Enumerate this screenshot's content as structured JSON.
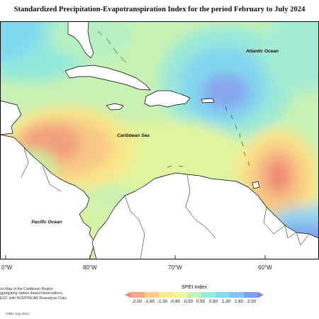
{
  "title": "Standardized Precipitation-Evapotranspiration Index for the period February to July 2024",
  "map": {
    "labels": {
      "atlantic": "Atlantic Ocean",
      "caribbean": "Caribbean Sea",
      "pacific": "Pacific Ocean"
    },
    "longitudes": [
      "0°W",
      "80°W",
      "70°W",
      "60°W"
    ],
    "colors": {
      "background": "#b9f3bd",
      "wet": "#6f8ff0",
      "dry": "#ef8a7a",
      "land": "#ffffff",
      "coast": "#000000"
    }
  },
  "legend": {
    "title": "SPEI Index",
    "ticks": [
      "-2.00",
      "-1.60",
      "-1.30",
      "-0.80",
      "-0.50",
      "0.50",
      "0.80",
      "1.30",
      "1.60",
      "2.00"
    ],
    "colors": [
      "#ef8a7a",
      "#f5a98b",
      "#f8cc8c",
      "#fbe98c",
      "#eef59a",
      "#c6f3b2",
      "#98ecd6",
      "#7fdcee",
      "#84c3f2",
      "#7aa2ef",
      "#6f86ea"
    ]
  },
  "note": {
    "line1": "on Map of the Caribbean Region",
    "line2": "ggregating station based observations,",
    "line3": "ECF, with NCEP/NCAR Reanalysis Data."
  },
  "credit": "CIMH July-2024"
}
